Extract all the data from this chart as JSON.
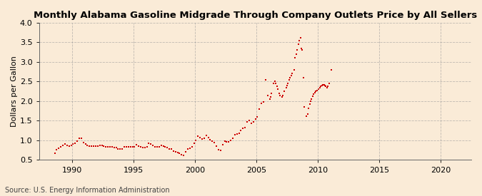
{
  "title": "Monthly Alabama Gasoline Midgrade Through Company Outlets Price by All Sellers",
  "ylabel": "Dollars per Gallon",
  "source": "Source: U.S. Energy Information Administration",
  "background_color": "#faebd7",
  "plot_background_color": "#faebd7",
  "line_color": "#cc0000",
  "marker": "s",
  "markersize": 2.0,
  "linewidth": 0.8,
  "ylim": [
    0.5,
    4.0
  ],
  "xlim_start": 1987.3,
  "xlim_end": 2022.5,
  "xticks": [
    1990,
    1995,
    2000,
    2005,
    2010,
    2015,
    2020
  ],
  "yticks": [
    0.5,
    1.0,
    1.5,
    2.0,
    2.5,
    3.0,
    3.5,
    4.0
  ],
  "grid_color": "#999999",
  "grid_linestyle": "--",
  "grid_alpha": 0.6,
  "title_fontsize": 9.5,
  "axis_fontsize": 8,
  "tick_fontsize": 8,
  "data": [
    [
      1988.583,
      0.67
    ],
    [
      1988.75,
      0.76
    ],
    [
      1988.917,
      0.8
    ],
    [
      1989.083,
      0.83
    ],
    [
      1989.25,
      0.88
    ],
    [
      1989.417,
      0.91
    ],
    [
      1989.583,
      0.88
    ],
    [
      1989.75,
      0.86
    ],
    [
      1989.917,
      0.87
    ],
    [
      1990.083,
      0.9
    ],
    [
      1990.25,
      0.93
    ],
    [
      1990.417,
      0.99
    ],
    [
      1990.583,
      1.06
    ],
    [
      1990.75,
      1.05
    ],
    [
      1990.917,
      0.94
    ],
    [
      1991.083,
      0.9
    ],
    [
      1991.25,
      0.87
    ],
    [
      1991.417,
      0.85
    ],
    [
      1991.583,
      0.85
    ],
    [
      1991.75,
      0.85
    ],
    [
      1991.917,
      0.86
    ],
    [
      1992.083,
      0.86
    ],
    [
      1992.25,
      0.87
    ],
    [
      1992.417,
      0.87
    ],
    [
      1992.583,
      0.86
    ],
    [
      1992.75,
      0.84
    ],
    [
      1992.917,
      0.83
    ],
    [
      1993.083,
      0.83
    ],
    [
      1993.25,
      0.84
    ],
    [
      1993.417,
      0.82
    ],
    [
      1993.583,
      0.81
    ],
    [
      1993.75,
      0.79
    ],
    [
      1993.917,
      0.78
    ],
    [
      1994.083,
      0.78
    ],
    [
      1994.25,
      0.83
    ],
    [
      1994.417,
      0.84
    ],
    [
      1994.583,
      0.83
    ],
    [
      1994.75,
      0.83
    ],
    [
      1994.917,
      0.83
    ],
    [
      1995.083,
      0.83
    ],
    [
      1995.25,
      0.89
    ],
    [
      1995.417,
      0.86
    ],
    [
      1995.583,
      0.84
    ],
    [
      1995.75,
      0.82
    ],
    [
      1995.917,
      0.82
    ],
    [
      1996.083,
      0.84
    ],
    [
      1996.25,
      0.93
    ],
    [
      1996.417,
      0.9
    ],
    [
      1996.583,
      0.87
    ],
    [
      1996.75,
      0.84
    ],
    [
      1996.917,
      0.83
    ],
    [
      1997.083,
      0.83
    ],
    [
      1997.25,
      0.87
    ],
    [
      1997.417,
      0.85
    ],
    [
      1997.583,
      0.83
    ],
    [
      1997.75,
      0.81
    ],
    [
      1997.917,
      0.79
    ],
    [
      1998.083,
      0.78
    ],
    [
      1998.25,
      0.73
    ],
    [
      1998.417,
      0.7
    ],
    [
      1998.583,
      0.69
    ],
    [
      1998.75,
      0.67
    ],
    [
      1998.917,
      0.63
    ],
    [
      1999.083,
      0.62
    ],
    [
      1999.25,
      0.7
    ],
    [
      1999.417,
      0.78
    ],
    [
      1999.583,
      0.8
    ],
    [
      1999.75,
      0.84
    ],
    [
      1999.917,
      0.92
    ],
    [
      2000.083,
      1.0
    ],
    [
      2000.25,
      1.1
    ],
    [
      2000.417,
      1.07
    ],
    [
      2000.583,
      1.03
    ],
    [
      2000.75,
      1.06
    ],
    [
      2000.917,
      1.12
    ],
    [
      2001.083,
      1.08
    ],
    [
      2001.25,
      1.02
    ],
    [
      2001.417,
      0.98
    ],
    [
      2001.583,
      0.94
    ],
    [
      2001.75,
      0.85
    ],
    [
      2001.917,
      0.76
    ],
    [
      2002.083,
      0.75
    ],
    [
      2002.25,
      0.89
    ],
    [
      2002.417,
      0.99
    ],
    [
      2002.583,
      0.96
    ],
    [
      2002.75,
      0.96
    ],
    [
      2002.917,
      1.0
    ],
    [
      2003.083,
      1.05
    ],
    [
      2003.25,
      1.15
    ],
    [
      2003.417,
      1.16
    ],
    [
      2003.583,
      1.18
    ],
    [
      2003.75,
      1.25
    ],
    [
      2003.917,
      1.3
    ],
    [
      2004.083,
      1.32
    ],
    [
      2004.25,
      1.48
    ],
    [
      2004.417,
      1.5
    ],
    [
      2004.583,
      1.44
    ],
    [
      2004.75,
      1.48
    ],
    [
      2004.917,
      1.55
    ],
    [
      2005.083,
      1.6
    ],
    [
      2005.25,
      1.8
    ],
    [
      2005.417,
      1.95
    ],
    [
      2005.583,
      1.98
    ],
    [
      2005.75,
      2.55
    ],
    [
      2005.917,
      2.15
    ],
    [
      2006.083,
      2.05
    ],
    [
      2006.167,
      2.1
    ],
    [
      2006.25,
      2.2
    ],
    [
      2006.417,
      2.45
    ],
    [
      2006.5,
      2.5
    ],
    [
      2006.583,
      2.45
    ],
    [
      2006.667,
      2.38
    ],
    [
      2006.75,
      2.3
    ],
    [
      2006.833,
      2.2
    ],
    [
      2006.917,
      2.15
    ],
    [
      2007.083,
      2.1
    ],
    [
      2007.167,
      2.15
    ],
    [
      2007.25,
      2.25
    ],
    [
      2007.417,
      2.35
    ],
    [
      2007.5,
      2.4
    ],
    [
      2007.583,
      2.45
    ],
    [
      2007.667,
      2.55
    ],
    [
      2007.75,
      2.6
    ],
    [
      2007.833,
      2.65
    ],
    [
      2007.917,
      2.7
    ],
    [
      2008.083,
      2.8
    ],
    [
      2008.167,
      3.1
    ],
    [
      2008.25,
      3.2
    ],
    [
      2008.333,
      3.3
    ],
    [
      2008.417,
      3.45
    ],
    [
      2008.5,
      3.55
    ],
    [
      2008.583,
      3.62
    ],
    [
      2008.667,
      3.35
    ],
    [
      2008.75,
      3.3
    ],
    [
      2008.833,
      2.6
    ],
    [
      2008.917,
      1.85
    ],
    [
      2009.083,
      1.62
    ],
    [
      2009.167,
      1.68
    ],
    [
      2009.25,
      1.82
    ],
    [
      2009.333,
      1.92
    ],
    [
      2009.417,
      2.0
    ],
    [
      2009.5,
      2.05
    ],
    [
      2009.583,
      2.12
    ],
    [
      2009.667,
      2.18
    ],
    [
      2009.75,
      2.22
    ],
    [
      2009.833,
      2.25
    ],
    [
      2009.917,
      2.28
    ],
    [
      2010.083,
      2.3
    ],
    [
      2010.167,
      2.35
    ],
    [
      2010.25,
      2.38
    ],
    [
      2010.333,
      2.4
    ],
    [
      2010.417,
      2.42
    ],
    [
      2010.5,
      2.42
    ],
    [
      2010.583,
      2.4
    ],
    [
      2010.667,
      2.38
    ],
    [
      2010.75,
      2.35
    ],
    [
      2010.833,
      2.38
    ],
    [
      2010.917,
      2.45
    ],
    [
      2011.083,
      2.8
    ]
  ]
}
